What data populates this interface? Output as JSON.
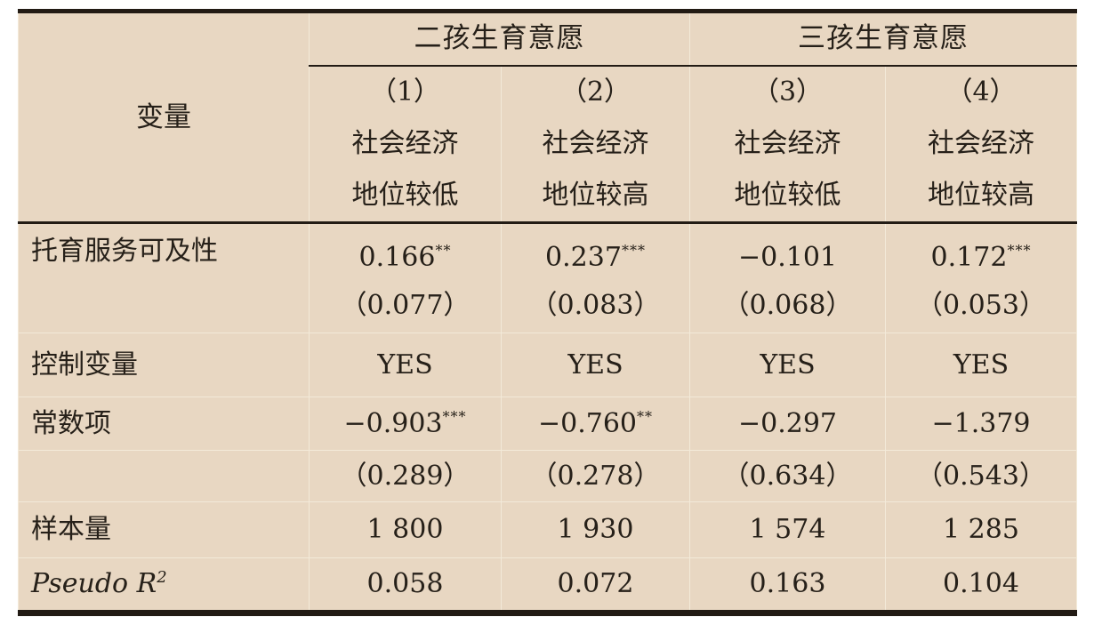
{
  "table": {
    "corner_label": "变量",
    "group_headers": [
      {
        "label": "二孩生育意愿"
      },
      {
        "label": "三孩生育意愿"
      }
    ],
    "columns": [
      {
        "number": "（1）",
        "line1": "社会经济",
        "line2": "地位较低"
      },
      {
        "number": "（2）",
        "line1": "社会经济",
        "line2": "地位较高"
      },
      {
        "number": "（3）",
        "line1": "社会经济",
        "line2": "地位较低"
      },
      {
        "number": "（4）",
        "line1": "社会经济",
        "line2": "地位较高"
      }
    ],
    "rows": {
      "accessibility": {
        "label": "托育服务可及性",
        "coefs": [
          "0.166",
          "0.237",
          "−0.101",
          "0.172"
        ],
        "stars": [
          "**",
          "***",
          "",
          "***"
        ],
        "ses": [
          "（0.077）",
          "（0.083）",
          "（0.068）",
          "（0.053）"
        ]
      },
      "controls": {
        "label": "控制变量",
        "values": [
          "YES",
          "YES",
          "YES",
          "YES"
        ]
      },
      "constant": {
        "label": "常数项",
        "coefs": [
          "−0.903",
          "−0.760",
          "−0.297",
          "−1.379"
        ],
        "stars": [
          "***",
          "**",
          "",
          ""
        ],
        "ses": [
          "（0.289）",
          "（0.278）",
          "（0.634）",
          "（0.543）"
        ]
      },
      "sample_size": {
        "label": "样本量",
        "values": [
          "1 800",
          "1 930",
          "1 574",
          "1 285"
        ]
      },
      "pseudo_r2": {
        "label_italic": "Pseudo R",
        "label_sup": "2",
        "values": [
          "0.058",
          "0.072",
          "0.163",
          "0.104"
        ]
      }
    },
    "colors": {
      "background": "#e8d7c2",
      "text": "#262019",
      "grid": "#f3ead9",
      "rule": "#221b14"
    }
  }
}
